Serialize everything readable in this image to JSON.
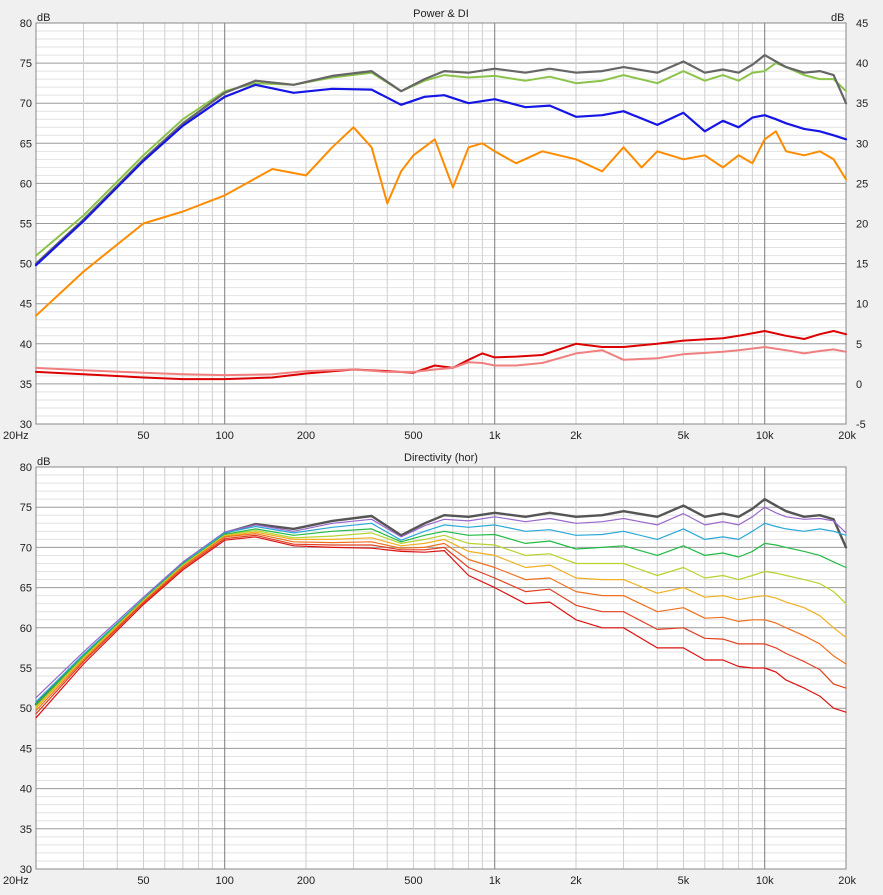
{
  "chart_data": [
    {
      "type": "line",
      "title": "Power & DI",
      "ylabel_left": "dB",
      "ylabel_right": "dB",
      "x_scale": "log",
      "xlim": [
        20,
        20000
      ],
      "ylim_left": [
        30,
        80
      ],
      "ylim_right": [
        -5,
        45
      ],
      "x_ticks": [
        {
          "value": 20,
          "label": "20Hz"
        },
        {
          "value": 50,
          "label": "50"
        },
        {
          "value": 100,
          "label": "100"
        },
        {
          "value": 200,
          "label": "200"
        },
        {
          "value": 500,
          "label": "500"
        },
        {
          "value": 1000,
          "label": "1k"
        },
        {
          "value": 2000,
          "label": "2k"
        },
        {
          "value": 5000,
          "label": "5k"
        },
        {
          "value": 10000,
          "label": "10k"
        },
        {
          "value": 20000,
          "label": "20k"
        }
      ],
      "y_ticks_left": [
        "30",
        "35",
        "40",
        "45",
        "50",
        "55",
        "60",
        "65",
        "70",
        "75",
        "80"
      ],
      "y_ticks_right": [
        "-5",
        "0",
        "5",
        "10",
        "15",
        "20",
        "25",
        "30",
        "35",
        "40",
        "45"
      ],
      "grid": true,
      "series": [
        {
          "color": "#8bc34a",
          "width": 2,
          "axis": "left",
          "x": [
            20,
            30,
            50,
            70,
            100,
            130,
            180,
            250,
            350,
            450,
            550,
            650,
            800,
            1000,
            1300,
            1600,
            2000,
            2500,
            3000,
            4000,
            5000,
            6000,
            7000,
            8000,
            9000,
            10000,
            11000,
            12000,
            14000,
            16000,
            18000,
            20000
          ],
          "y": [
            51,
            56,
            63.5,
            68,
            71.5,
            72.5,
            72.3,
            73.2,
            73.8,
            71.5,
            72.8,
            73.5,
            73.2,
            73.4,
            72.8,
            73.3,
            72.5,
            72.8,
            73.5,
            72.5,
            74.0,
            72.8,
            73.5,
            72.8,
            73.8,
            74.0,
            75.0,
            74.5,
            73.5,
            73.0,
            73.0,
            71.5
          ]
        },
        {
          "color": "#666666",
          "width": 2.2,
          "axis": "left",
          "x": [
            20,
            30,
            50,
            70,
            100,
            130,
            180,
            250,
            350,
            450,
            550,
            650,
            800,
            1000,
            1300,
            1600,
            2000,
            2500,
            3000,
            4000,
            5000,
            6000,
            7000,
            8000,
            9000,
            10000,
            11000,
            12000,
            14000,
            16000,
            18000,
            20000
          ],
          "y": [
            50,
            55.5,
            63,
            67.5,
            71.3,
            72.8,
            72.3,
            73.4,
            74.0,
            71.5,
            73.0,
            74.0,
            73.8,
            74.3,
            73.8,
            74.3,
            73.8,
            74.0,
            74.5,
            73.8,
            75.2,
            73.8,
            74.2,
            73.8,
            74.8,
            76.0,
            75.2,
            74.5,
            73.8,
            74.0,
            73.5,
            70.0
          ]
        },
        {
          "color": "#1515e6",
          "width": 2.2,
          "axis": "left",
          "x": [
            20,
            30,
            50,
            70,
            100,
            130,
            180,
            250,
            350,
            450,
            550,
            650,
            800,
            1000,
            1300,
            1600,
            2000,
            2500,
            3000,
            4000,
            5000,
            6000,
            7000,
            8000,
            9000,
            10000,
            11000,
            12000,
            14000,
            16000,
            18000,
            20000
          ],
          "y": [
            49.8,
            55.3,
            62.8,
            67.2,
            70.8,
            72.3,
            71.3,
            71.8,
            71.7,
            69.8,
            70.8,
            71.0,
            70.0,
            70.5,
            69.5,
            69.7,
            68.3,
            68.5,
            69.0,
            67.3,
            68.8,
            66.5,
            67.8,
            67.0,
            68.2,
            68.5,
            68.0,
            67.5,
            66.8,
            66.5,
            66.0,
            65.5
          ]
        },
        {
          "color": "#ff8c00",
          "width": 2,
          "axis": "right",
          "x": [
            20,
            30,
            50,
            70,
            100,
            150,
            200,
            250,
            300,
            350,
            400,
            450,
            500,
            600,
            700,
            800,
            900,
            1000,
            1200,
            1500,
            2000,
            2500,
            3000,
            3500,
            4000,
            5000,
            6000,
            7000,
            8000,
            9000,
            10000,
            11000,
            12000,
            14000,
            16000,
            18000,
            20000
          ],
          "y": [
            8.5,
            14,
            20,
            21.5,
            23.5,
            26.8,
            26.0,
            29.5,
            32.0,
            29.5,
            22.5,
            26.5,
            28.5,
            30.5,
            24.5,
            29.5,
            30.0,
            29.0,
            27.5,
            29.0,
            28.0,
            26.5,
            29.5,
            27.0,
            29.0,
            28.0,
            28.5,
            27.0,
            28.5,
            27.5,
            30.5,
            31.5,
            29.0,
            28.5,
            29.0,
            28.0,
            25.5
          ]
        },
        {
          "color": "#dd0000",
          "width": 2,
          "axis": "right",
          "x": [
            20,
            30,
            50,
            70,
            100,
            150,
            200,
            300,
            400,
            500,
            600,
            700,
            800,
            900,
            1000,
            1200,
            1500,
            2000,
            2500,
            3000,
            4000,
            5000,
            7000,
            8000,
            10000,
            12000,
            14000,
            16000,
            18000,
            20000
          ],
          "y": [
            1.5,
            1.2,
            0.8,
            0.6,
            0.6,
            0.8,
            1.3,
            1.8,
            1.6,
            1.4,
            2.3,
            2.0,
            3.0,
            3.8,
            3.3,
            3.4,
            3.6,
            5.0,
            4.6,
            4.6,
            5.0,
            5.4,
            5.7,
            6.0,
            6.6,
            6.0,
            5.6,
            6.2,
            6.6,
            6.2
          ]
        },
        {
          "color": "#f08080",
          "width": 2,
          "axis": "right",
          "x": [
            20,
            30,
            50,
            70,
            100,
            150,
            200,
            300,
            400,
            500,
            600,
            700,
            800,
            900,
            1000,
            1200,
            1500,
            2000,
            2500,
            3000,
            4000,
            5000,
            7000,
            8000,
            10000,
            12000,
            14000,
            16000,
            18000,
            20000
          ],
          "y": [
            2.0,
            1.7,
            1.4,
            1.2,
            1.1,
            1.2,
            1.6,
            1.8,
            1.5,
            1.5,
            1.8,
            2.0,
            2.7,
            2.6,
            2.3,
            2.3,
            2.6,
            3.8,
            4.2,
            3.0,
            3.2,
            3.7,
            4.0,
            4.2,
            4.6,
            4.2,
            3.8,
            4.1,
            4.3,
            4.0
          ]
        }
      ]
    },
    {
      "type": "line",
      "title": "Directivity (hor)",
      "ylabel_left": "dB",
      "x_scale": "log",
      "xlim": [
        20,
        20000
      ],
      "ylim_left": [
        30,
        80
      ],
      "x_ticks": [
        {
          "value": 20,
          "label": "20Hz"
        },
        {
          "value": 50,
          "label": "50"
        },
        {
          "value": 100,
          "label": "100"
        },
        {
          "value": 200,
          "label": "200"
        },
        {
          "value": 500,
          "label": "500"
        },
        {
          "value": 1000,
          "label": "1k"
        },
        {
          "value": 2000,
          "label": "2k"
        },
        {
          "value": 5000,
          "label": "5k"
        },
        {
          "value": 10000,
          "label": "10k"
        },
        {
          "value": 20000,
          "label": "20k"
        }
      ],
      "y_ticks_left": [
        "30",
        "35",
        "40",
        "45",
        "50",
        "55",
        "60",
        "65",
        "70",
        "75",
        "80"
      ],
      "grid": true,
      "x": [
        20,
        30,
        50,
        70,
        100,
        130,
        180,
        250,
        350,
        450,
        550,
        650,
        800,
        1000,
        1300,
        1600,
        2000,
        2500,
        3000,
        4000,
        5000,
        6000,
        7000,
        8000,
        9000,
        10000,
        11000,
        12000,
        14000,
        16000,
        18000,
        20000
      ],
      "series": [
        {
          "color": "#555555",
          "width": 2.4,
          "y": [
            50.5,
            56.5,
            63.5,
            68,
            71.8,
            72.9,
            72.3,
            73.3,
            73.9,
            71.5,
            73.0,
            74.0,
            73.8,
            74.3,
            73.8,
            74.3,
            73.8,
            74.0,
            74.5,
            73.8,
            75.2,
            73.8,
            74.2,
            73.8,
            74.8,
            76.0,
            75.2,
            74.5,
            73.8,
            74.0,
            73.5,
            70.0
          ]
        },
        {
          "color": "#9966cc",
          "width": 1.2,
          "y": [
            51.3,
            57.0,
            63.8,
            68.2,
            71.9,
            72.8,
            72.0,
            73.0,
            73.5,
            71.3,
            72.7,
            73.5,
            73.3,
            73.8,
            73.2,
            73.6,
            73.0,
            73.2,
            73.6,
            72.8,
            74.2,
            72.8,
            73.2,
            72.8,
            73.8,
            75.0,
            74.3,
            73.8,
            73.5,
            73.6,
            73.3,
            71.8
          ]
        },
        {
          "color": "#2aa8d8",
          "width": 1.2,
          "y": [
            50.8,
            56.7,
            63.6,
            68.0,
            71.8,
            72.6,
            71.8,
            72.5,
            73.0,
            70.9,
            72.0,
            72.8,
            72.5,
            72.8,
            72.0,
            72.2,
            71.5,
            71.6,
            72.0,
            71.0,
            72.3,
            71.0,
            71.3,
            71.0,
            72.0,
            73.0,
            72.6,
            72.3,
            72.0,
            72.3,
            72.0,
            71.5
          ]
        },
        {
          "color": "#22bb44",
          "width": 1.2,
          "y": [
            50.5,
            56.5,
            63.5,
            67.9,
            71.6,
            72.3,
            71.5,
            72.0,
            72.3,
            70.7,
            71.5,
            72.0,
            71.5,
            71.6,
            70.5,
            70.8,
            69.8,
            70.0,
            70.2,
            69.0,
            70.2,
            69.0,
            69.3,
            68.8,
            69.5,
            70.5,
            70.3,
            70.0,
            69.5,
            69.0,
            68.2,
            67.5
          ]
        },
        {
          "color": "#b5d430",
          "width": 1.2,
          "y": [
            50.2,
            56.3,
            63.4,
            67.8,
            71.5,
            72.1,
            71.2,
            71.4,
            71.8,
            70.5,
            71.0,
            71.5,
            70.5,
            70.3,
            69.0,
            69.2,
            68.0,
            68.0,
            68.0,
            66.5,
            67.5,
            66.2,
            66.5,
            66.0,
            66.5,
            67.0,
            66.8,
            66.5,
            66.0,
            65.5,
            64.5,
            63.0
          ]
        },
        {
          "color": "#f0b020",
          "width": 1.2,
          "y": [
            50.0,
            56.2,
            63.3,
            67.7,
            71.4,
            71.9,
            71.0,
            71.0,
            71.2,
            70.2,
            70.5,
            71.0,
            69.5,
            69.0,
            67.5,
            67.8,
            66.2,
            66.0,
            66.0,
            64.3,
            65.0,
            63.8,
            64.0,
            63.5,
            63.8,
            64.0,
            63.7,
            63.2,
            62.5,
            61.5,
            60.0,
            58.8
          ]
        },
        {
          "color": "#f07020",
          "width": 1.2,
          "y": [
            49.7,
            56.0,
            63.2,
            67.6,
            71.3,
            71.7,
            70.7,
            70.6,
            70.7,
            69.9,
            70.0,
            70.5,
            68.5,
            67.5,
            66.0,
            66.2,
            64.5,
            64.0,
            64.0,
            62.0,
            62.5,
            61.2,
            61.3,
            60.8,
            61.0,
            61.0,
            60.6,
            60.0,
            59.0,
            58.0,
            56.5,
            55.5
          ]
        },
        {
          "color": "#e04020",
          "width": 1.2,
          "y": [
            49.3,
            55.8,
            63.1,
            67.4,
            71.1,
            71.5,
            70.4,
            70.3,
            70.3,
            69.7,
            69.7,
            70.0,
            67.5,
            66.2,
            64.5,
            64.8,
            62.8,
            62.0,
            62.0,
            59.8,
            60.0,
            58.7,
            58.6,
            58.0,
            58.0,
            58.0,
            57.5,
            56.8,
            55.8,
            54.8,
            53.0,
            52.5
          ]
        },
        {
          "color": "#dd1111",
          "width": 1.2,
          "y": [
            48.8,
            55.5,
            62.9,
            67.2,
            70.9,
            71.3,
            70.2,
            70.0,
            69.9,
            69.5,
            69.4,
            69.6,
            66.5,
            65.0,
            63.0,
            63.2,
            61.0,
            60.0,
            60.0,
            57.5,
            57.5,
            56.0,
            56.0,
            55.2,
            55.0,
            55.0,
            54.5,
            53.5,
            52.5,
            51.5,
            50.0,
            49.5
          ]
        }
      ]
    }
  ]
}
